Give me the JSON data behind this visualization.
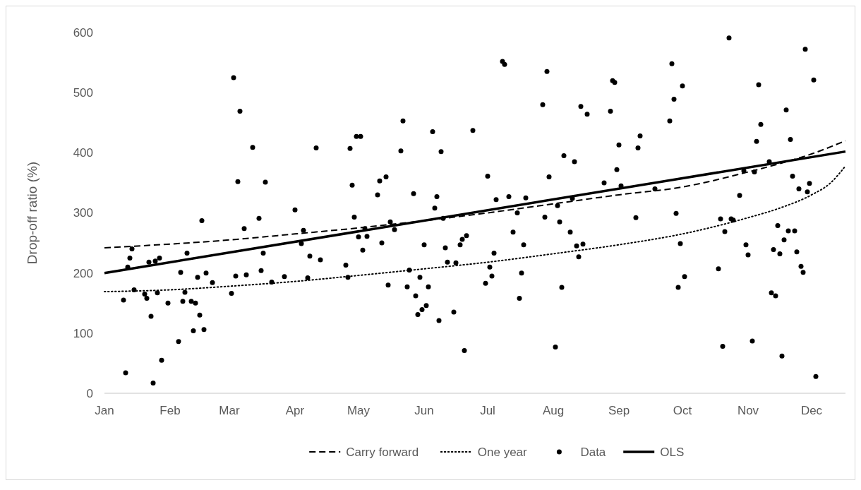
{
  "chart_data": {
    "type": "scatter",
    "ylabel": "Drop-off ratio (%)",
    "xlim": [
      "--01-01",
      "--12-17"
    ],
    "ylim": [
      0,
      600
    ],
    "xticks": [
      {
        "value": "--01-01",
        "label": "Jan"
      },
      {
        "value": "--02-01",
        "label": "Feb"
      },
      {
        "value": "--03-01",
        "label": "Mar"
      },
      {
        "value": "--04-01",
        "label": "Apr"
      },
      {
        "value": "--05-01",
        "label": "May"
      },
      {
        "value": "--06-01",
        "label": "Jun"
      },
      {
        "value": "--07-01",
        "label": "Jul"
      },
      {
        "value": "--08-01",
        "label": "Aug"
      },
      {
        "value": "--09-01",
        "label": "Sep"
      },
      {
        "value": "--10-01",
        "label": "Oct"
      },
      {
        "value": "--11-01",
        "label": "Nov"
      },
      {
        "value": "--12-01",
        "label": "Dec"
      }
    ],
    "yticks": [
      0,
      100,
      200,
      300,
      400,
      500,
      600
    ],
    "grid": false,
    "legend": "bottom",
    "series": [
      {
        "name": "Carry forward",
        "type": "line",
        "line_style": "dashed",
        "color": "#000000",
        "x": [
          "--01-01",
          "--03-01",
          "--04-01",
          "--05-01",
          "--06-01",
          "--07-01",
          "--08-01",
          "--09-01",
          "--10-01",
          "--11-01",
          "--11-16",
          "--12-01",
          "--12-17"
        ],
        "values": [
          242,
          255,
          265,
          275,
          287,
          300,
          315,
          330,
          343,
          368,
          382,
          398,
          420
        ]
      },
      {
        "name": "One year",
        "type": "line",
        "line_style": "dotted",
        "color": "#000000",
        "x": [
          "--01-01",
          "--02-01",
          "--03-01",
          "--04-01",
          "--05-01",
          "--06-01",
          "--07-01",
          "--08-01",
          "--09-01",
          "--10-01",
          "--11-01",
          "--11-16",
          "--12-01",
          "--12-10",
          "--12-17"
        ],
        "values": [
          169,
          172,
          178,
          186,
          196,
          207,
          218,
          232,
          247,
          265,
          292,
          308,
          330,
          350,
          378
        ]
      },
      {
        "name": "Data",
        "marker": "circle",
        "color": "#000000",
        "x": [
          "--01-10",
          "--01-11",
          "--01-12",
          "--01-13",
          "--01-14",
          "--01-15",
          "--01-20",
          "--01-21",
          "--01-22",
          "--01-23",
          "--01-24",
          "--01-25",
          "--01-26",
          "--01-27",
          "--01-28",
          "--01-31",
          "--02-05",
          "--02-06",
          "--02-07",
          "--02-08",
          "--02-09",
          "--02-11",
          "--02-12",
          "--02-13",
          "--02-14",
          "--02-15",
          "--02-16",
          "--02-17",
          "--02-18",
          "--02-21",
          "--03-02",
          "--03-03",
          "--03-04",
          "--03-05",
          "--03-06",
          "--03-08",
          "--03-09",
          "--03-12",
          "--03-15",
          "--03-16",
          "--03-17",
          "--03-18",
          "--03-21",
          "--03-27",
          "--04-01",
          "--04-04",
          "--04-05",
          "--04-07",
          "--04-08",
          "--04-11",
          "--04-13",
          "--04-25",
          "--04-26",
          "--04-27",
          "--04-28",
          "--04-29",
          "--04-30",
          "--05-01",
          "--05-02",
          "--05-03",
          "--05-04",
          "--05-05",
          "--05-10",
          "--05-11",
          "--05-12",
          "--05-14",
          "--05-15",
          "--05-16",
          "--05-18",
          "--05-21",
          "--05-22",
          "--05-24",
          "--05-25",
          "--05-27",
          "--05-28",
          "--05-29",
          "--05-30",
          "--05-31",
          "--06-02",
          "--06-01",
          "--06-03",
          "--06-06",
          "--06-05",
          "--06-07",
          "--06-08",
          "--06-09",
          "--06-10",
          "--06-11",
          "--06-12",
          "--06-15",
          "--06-16",
          "--06-18",
          "--06-19",
          "--06-20",
          "--06-21",
          "--06-24",
          "--06-30",
          "--07-01",
          "--07-02",
          "--07-03",
          "--07-04",
          "--07-05",
          "--07-08",
          "--07-09",
          "--07-11",
          "--07-13",
          "--07-15",
          "--07-16",
          "--07-17",
          "--07-18",
          "--07-19",
          "--07-27",
          "--07-28",
          "--07-29",
          "--07-30",
          "--08-02",
          "--08-03",
          "--08-04",
          "--08-05",
          "--08-06",
          "--08-09",
          "--08-10",
          "--08-11",
          "--08-12",
          "--08-13",
          "--08-14",
          "--08-15",
          "--08-17",
          "--08-25",
          "--08-28",
          "--08-29",
          "--08-30",
          "--08-31",
          "--09-01",
          "--09-02",
          "--09-09",
          "--09-10",
          "--09-11",
          "--09-18",
          "--09-25",
          "--09-26",
          "--09-27",
          "--09-28",
          "--09-29",
          "--09-30",
          "--10-01",
          "--10-02",
          "--10-23",
          "--10-18",
          "--10-19",
          "--10-20",
          "--10-21",
          "--10-24",
          "--10-25",
          "--10-28",
          "--10-30",
          "--10-31",
          "--11-01",
          "--11-03",
          "--11-04",
          "--11-05",
          "--11-06",
          "--11-07",
          "--11-11",
          "--11-12",
          "--11-13",
          "--11-14",
          "--11-15",
          "--11-16",
          "--11-17",
          "--11-18",
          "--11-19",
          "--11-20",
          "--11-21",
          "--11-22",
          "--11-23",
          "--11-24",
          "--11-25",
          "--11-26",
          "--11-27",
          "--11-28",
          "--11-29",
          "--11-30",
          "--12-02",
          "--12-03"
        ],
        "values": [
          155,
          34,
          210,
          225,
          240,
          172,
          165,
          158,
          218,
          128,
          17,
          220,
          167,
          225,
          55,
          150,
          86,
          201,
          153,
          168,
          233,
          153,
          104,
          150,
          193,
          130,
          287,
          106,
          200,
          184,
          166,
          525,
          195,
          352,
          469,
          274,
          197,
          409,
          291,
          204,
          233,
          351,
          185,
          194,
          305,
          249,
          271,
          192,
          228,
          408,
          222,
          213,
          193,
          407,
          346,
          293,
          427,
          260,
          427,
          238,
          274,
          261,
          330,
          353,
          250,
          360,
          180,
          285,
          272,
          403,
          453,
          177,
          205,
          332,
          162,
          131,
          193,
          139,
          146,
          247,
          177,
          308,
          435,
          327,
          121,
          402,
          291,
          242,
          218,
          135,
          217,
          247,
          256,
          71,
          262,
          437,
          183,
          361,
          210,
          195,
          233,
          322,
          552,
          547,
          327,
          268,
          300,
          158,
          200,
          247,
          325,
          480,
          293,
          535,
          360,
          77,
          312,
          285,
          176,
          395,
          268,
          324,
          385,
          245,
          227,
          477,
          248,
          464,
          350,
          469,
          520,
          517,
          372,
          413,
          345,
          292,
          408,
          428,
          340,
          453,
          548,
          489,
          299,
          176,
          249,
          511,
          194,
          591,
          207,
          290,
          78,
          269,
          290,
          288,
          329,
          370,
          247,
          230,
          87,
          368,
          419,
          513,
          447,
          385,
          167,
          239,
          162,
          279,
          232,
          62,
          255,
          471,
          270,
          422,
          361,
          270,
          235,
          340,
          211,
          201,
          572,
          335,
          349,
          521,
          28
        ]
      },
      {
        "name": "OLS",
        "type": "line",
        "line_style": "solid",
        "color": "#000000",
        "x": [
          "--01-01",
          "--12-17"
        ],
        "values": [
          200,
          402
        ]
      }
    ]
  }
}
